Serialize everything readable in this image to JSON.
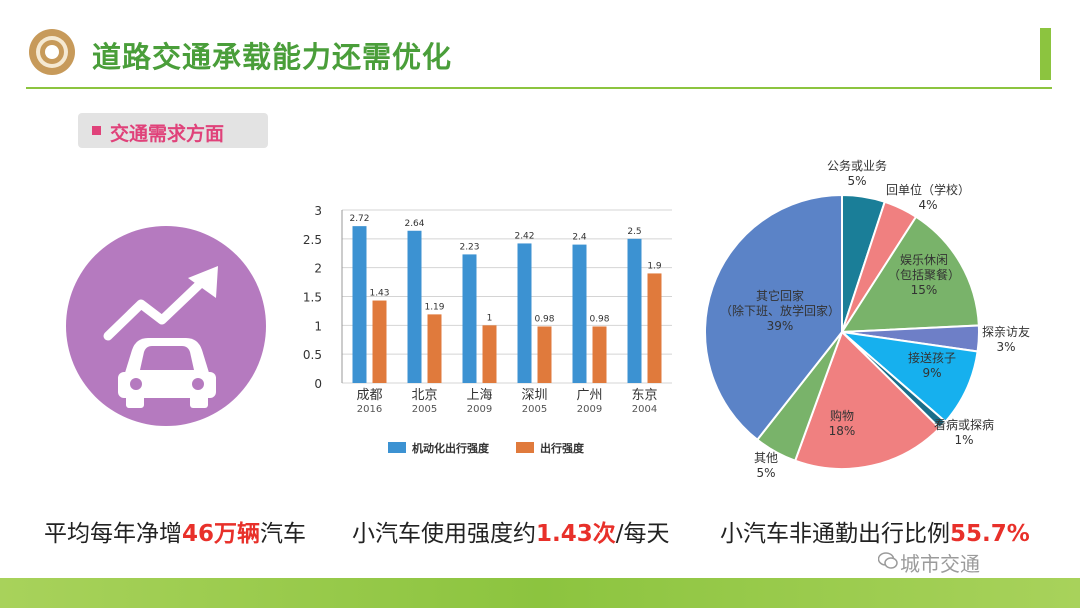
{
  "header": {
    "title": "道路交通承载能力还需优化",
    "section_label": "交通需求方面"
  },
  "colors": {
    "green": "#4a9e3a",
    "accent": "#e0427a",
    "highlight": "#e8302a",
    "circle": "#b57abf",
    "series1": "#3c92d2",
    "series2": "#e07a3c"
  },
  "captions": [
    {
      "pre": "平均每年净增",
      "hl": "46万辆",
      "post": "汽车"
    },
    {
      "pre": "小汽车使用强度约",
      "hl": "1.43次",
      "post": "/每天"
    },
    {
      "pre": "小汽车非通勤出行比例",
      "hl": "55.7%",
      "post": ""
    }
  ],
  "watermark": "城市交通",
  "chart_data": [
    {
      "type": "bar",
      "categories": [
        "成都",
        "北京",
        "上海",
        "深圳",
        "广州",
        "东京"
      ],
      "years": [
        "2016",
        "2005",
        "2009",
        "2005",
        "2009",
        "2004"
      ],
      "series": [
        {
          "name": "机动化出行强度",
          "values": [
            2.72,
            2.64,
            2.23,
            2.42,
            2.4,
            2.5
          ]
        },
        {
          "name": "出行强度",
          "values": [
            1.43,
            1.19,
            1,
            0.98,
            0.98,
            1.9
          ]
        }
      ],
      "ylim": [
        0,
        3
      ],
      "yticks": [
        "0",
        "0.5",
        "1",
        "1.5",
        "2",
        "2.5",
        "3"
      ],
      "grid": true,
      "legend": "bottom"
    },
    {
      "type": "pie",
      "slices": [
        {
          "label": "公务或业务",
          "value": 5,
          "color": "#1a7e98"
        },
        {
          "label": "回单位（学校）",
          "value": 4,
          "color": "#f08080"
        },
        {
          "label": "娱乐休闲（包括聚餐）",
          "value": 15,
          "color": "#79b36a"
        },
        {
          "label": "探亲访友",
          "value": 3,
          "color": "#6e7fc7"
        },
        {
          "label": "接送孩子",
          "value": 9,
          "color": "#16b0ee"
        },
        {
          "label": "看病或探病",
          "value": 1,
          "color": "#1a6e8a"
        },
        {
          "label": "购物",
          "value": 18,
          "color": "#f08080"
        },
        {
          "label": "其他",
          "value": 5,
          "color": "#79b36a"
        },
        {
          "label": "其它回家（除下班、放学回家）",
          "value": 39,
          "color": "#5b83c7"
        }
      ],
      "text": {
        "s0": [
          "公务或业务",
          "5%"
        ],
        "s1": [
          "回单位（学校）",
          "4%"
        ],
        "s2": [
          "娱乐休闲",
          "（包括聚餐）",
          "15%"
        ],
        "s3": [
          "探亲访友",
          "3%"
        ],
        "s4": [
          "接送孩子",
          "9%"
        ],
        "s5": [
          "看病或探病",
          "1%"
        ],
        "s6": [
          "购物",
          "18%"
        ],
        "s7": [
          "其他",
          "5%"
        ],
        "s8": [
          "其它回家",
          "（除下班、放学回家）",
          "39%"
        ]
      }
    }
  ]
}
